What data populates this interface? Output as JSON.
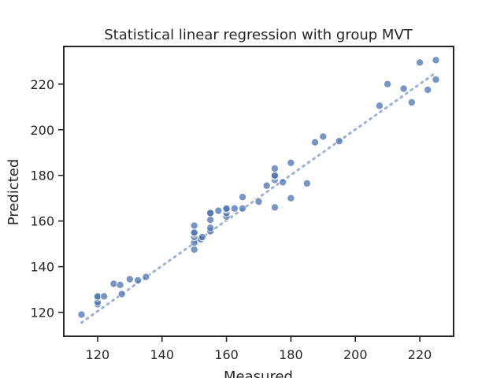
{
  "chart_data": {
    "type": "scatter",
    "title": "Statistical linear regression with group MVT",
    "xlabel": "Measured",
    "ylabel": "Predicted",
    "xlim": [
      109.5,
      230.5
    ],
    "ylim": [
      109.5,
      236.5
    ],
    "xticks": [
      120,
      140,
      160,
      180,
      200,
      220
    ],
    "yticks": [
      120,
      140,
      160,
      180,
      200,
      220
    ],
    "grid": false,
    "colors": {
      "points": "#4c72b0",
      "fit_line": "#4c72b0"
    },
    "series": [
      {
        "name": "MVT",
        "x": [
          115,
          120,
          120,
          120,
          120,
          122,
          125,
          127,
          127.5,
          130,
          132.5,
          135,
          150,
          150,
          150,
          150,
          150,
          150,
          152,
          152.5,
          155,
          155,
          155,
          155,
          155,
          157.5,
          160,
          160,
          160,
          160,
          162.5,
          165,
          165,
          170,
          172.5,
          175,
          175,
          175,
          175,
          175,
          177.5,
          180,
          180,
          185,
          187.5,
          190,
          195,
          207.5,
          210,
          215,
          217.5,
          220,
          222.5,
          225,
          225
        ],
        "y": [
          119,
          123.5,
          124.5,
          126.5,
          127,
          127,
          132.5,
          132,
          128,
          134.5,
          134,
          135.5,
          147.5,
          150.5,
          153,
          154.5,
          155,
          158,
          152,
          153,
          155.5,
          157,
          160.5,
          163.5,
          163.5,
          164.5,
          162,
          163.5,
          165,
          165.5,
          165.5,
          165.5,
          170.5,
          168.5,
          175.5,
          166,
          178,
          179.5,
          180,
          183,
          177,
          170,
          185.5,
          176.5,
          194.5,
          197,
          195,
          210.5,
          220,
          218,
          212,
          229.5,
          217.5,
          222,
          230.5
        ]
      }
    ],
    "fit_line": {
      "x": [
        115,
        225
      ],
      "y": [
        115.5,
        225.0
      ]
    }
  }
}
